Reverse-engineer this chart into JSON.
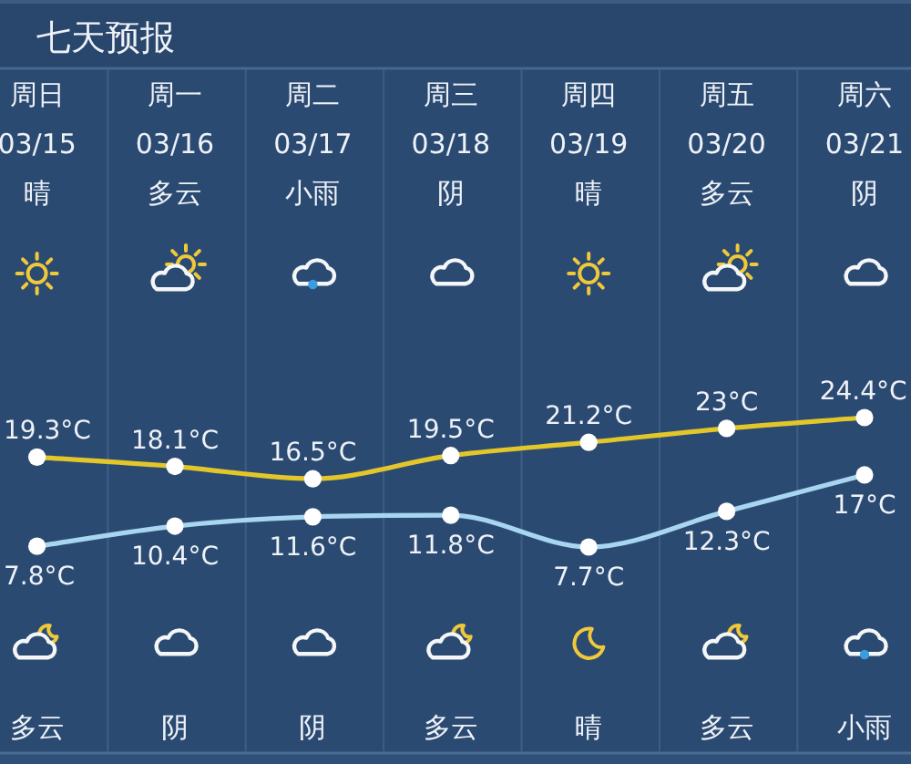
{
  "chart_data": {
    "type": "line",
    "title": "七天预报",
    "categories": [
      "周日\n03/15\n晴",
      "周一\n03/16\n多云",
      "周二\n03/17\n小雨",
      "周三\n03/18\n阴",
      "周四\n03/19\n晴",
      "周五\n03/20\n多云",
      "周六\n03/21\n阴"
    ],
    "series": [
      {
        "color": "#e3c62a",
        "values": [
          19.3,
          18.1,
          16.5,
          19.5,
          21.2,
          23,
          24.4
        ],
        "value_labels": [
          "19.3°C",
          "18.1°C",
          "16.5°C",
          "19.5°C",
          "21.2°C",
          "23°C",
          "24.4°C"
        ]
      },
      {
        "color": "#a8d5f0",
        "values": [
          7.8,
          10.4,
          11.6,
          11.8,
          7.7,
          12.3,
          17
        ],
        "value_labels": [
          "7.8°C",
          "10.4°C",
          "11.6°C",
          "11.8°C",
          "7.7°C",
          "12.3°C",
          "17°C"
        ]
      }
    ],
    "annotations": [
      "多云",
      "阴",
      "阴",
      "多云",
      "晴",
      "多云",
      "小雨"
    ],
    "marker": "circle",
    "grid": "x"
  }
}
